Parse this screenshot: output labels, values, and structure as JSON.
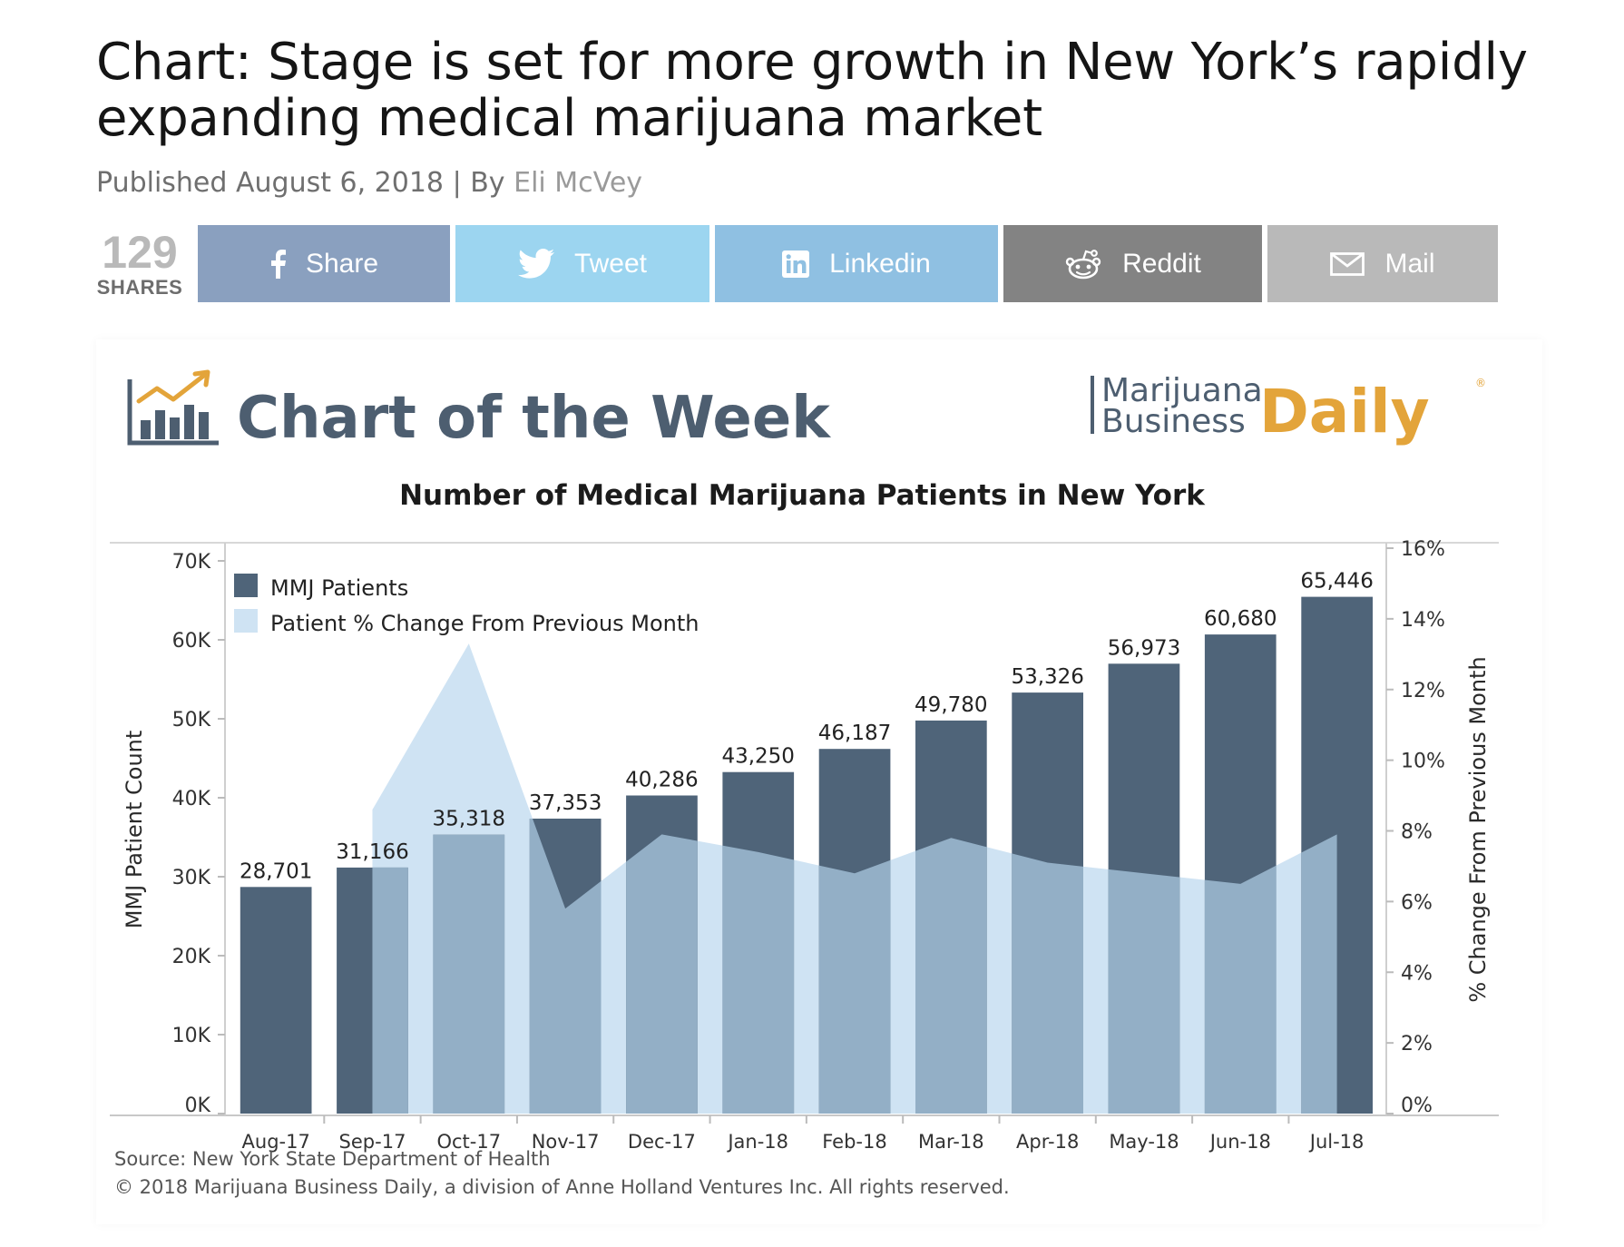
{
  "article": {
    "headline": "Chart: Stage is set for more growth in New York’s rapidly expanding medical marijuana market",
    "published_prefix": "Published",
    "published_date": "August 6, 2018",
    "separator": "|",
    "by_label": "By",
    "author": "Eli McVey"
  },
  "share_bar": {
    "count": "129",
    "count_label": "SHARES",
    "buttons": [
      {
        "label": "Share",
        "icon": "facebook-icon",
        "color": "#8aa0bf"
      },
      {
        "label": "Tweet",
        "icon": "twitter-icon",
        "color": "#9cd5f0"
      },
      {
        "label": "Linkedin",
        "icon": "linkedin-icon",
        "color": "#8fc0e2"
      },
      {
        "label": "Reddit",
        "icon": "reddit-icon",
        "color": "#838383"
      },
      {
        "label": "Mail",
        "icon": "mail-icon",
        "color": "#b9b9b9"
      }
    ]
  },
  "chart_header": {
    "heading": "Chart of the Week",
    "brand_line1": "Marijuana",
    "brand_line2": "Business",
    "brand_daily": "Daily",
    "brand_mark": "®",
    "colors": {
      "heading": "#4d5e70",
      "daily": "#e3a43a",
      "brand": "#4d5e70"
    }
  },
  "chart_data": {
    "type": "bar",
    "title": "Number of Medical Marijuana Patients in New York",
    "categories": [
      "Aug-17",
      "Sep-17",
      "Oct-17",
      "Nov-17",
      "Dec-17",
      "Jan-18",
      "Feb-18",
      "Mar-18",
      "Apr-18",
      "May-18",
      "Jun-18",
      "Jul-18"
    ],
    "series": [
      {
        "name": "MMJ Patients",
        "type": "bar",
        "axis": "left",
        "color": "#4f6479",
        "values": [
          28701,
          31166,
          35318,
          37353,
          40286,
          43250,
          46187,
          49780,
          53326,
          56973,
          60680,
          65446
        ]
      },
      {
        "name": "Patient % Change From Previous Month",
        "type": "area",
        "axis": "right",
        "color": "#cfe3f3",
        "values": [
          null,
          8.6,
          13.3,
          5.8,
          7.9,
          7.4,
          6.8,
          7.8,
          7.1,
          6.8,
          6.5,
          7.9
        ]
      }
    ],
    "data_labels": [
      "28,701",
      "31,166",
      "35,318",
      "37,353",
      "40,286",
      "43,250",
      "46,187",
      "49,780",
      "53,326",
      "56,973",
      "60,680",
      "65,446"
    ],
    "ylabel": "MMJ Patient Count",
    "y2label": "% Change From Previous Month",
    "ylim": [
      0,
      70000
    ],
    "y2lim": [
      0,
      16
    ],
    "yticks": [
      "0K",
      "10K",
      "20K",
      "30K",
      "40K",
      "50K",
      "60K",
      "70K"
    ],
    "y2ticks": [
      "0%",
      "2%",
      "4%",
      "6%",
      "8%",
      "10%",
      "12%",
      "14%",
      "16%"
    ],
    "grid": false,
    "legend_position": "top-left"
  },
  "footer": {
    "source": "Source: New York State Department of Health",
    "copyright": "© 2018 Marijuana Business Daily, a division of Anne Holland Ventures Inc. All rights reserved."
  }
}
